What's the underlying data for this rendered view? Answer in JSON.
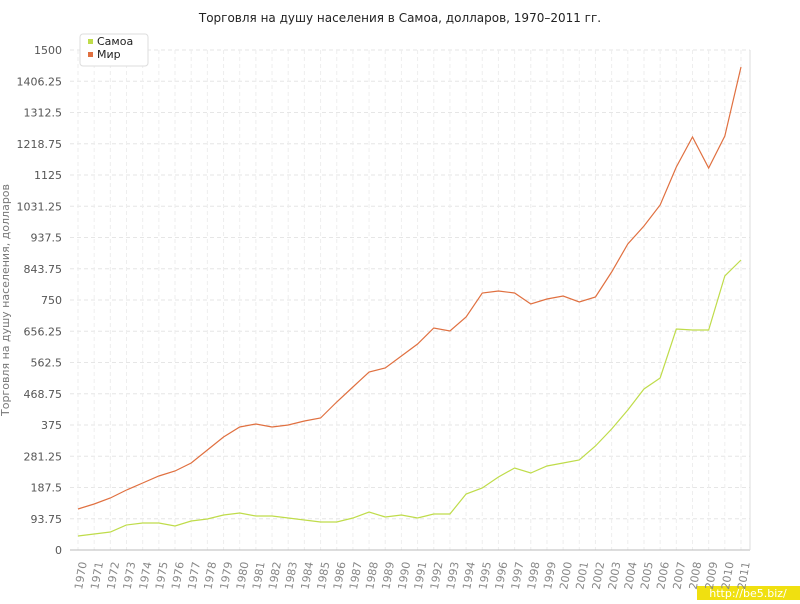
{
  "chart_data": {
    "type": "line",
    "title": "Торговля на душу населения в Самоа, долларов, 1970–2011 гг.",
    "y_label": "Торговля на душу населения, долларов",
    "categories": [
      "1970",
      "1971",
      "1972",
      "1973",
      "1974",
      "1975",
      "1976",
      "1977",
      "1978",
      "1979",
      "1980",
      "1981",
      "1982",
      "1983",
      "1984",
      "1985",
      "1986",
      "1987",
      "1988",
      "1989",
      "1990",
      "1991",
      "1992",
      "1993",
      "1994",
      "1995",
      "1996",
      "1997",
      "1998",
      "1999",
      "2000",
      "2001",
      "2002",
      "2003",
      "2004",
      "2005",
      "2006",
      "2007",
      "2008",
      "2009",
      "2010",
      "2011"
    ],
    "series": [
      {
        "name": "Самоа",
        "color": "#bfdc4a",
        "values": [
          42,
          48,
          54,
          75,
          81,
          81,
          72,
          87,
          93,
          105,
          111,
          102,
          102,
          96,
          90,
          84,
          84,
          96,
          114,
          99,
          105,
          96,
          108,
          108,
          168,
          186,
          219,
          246,
          231,
          252,
          261,
          270,
          312,
          363,
          420,
          483,
          516,
          663,
          660,
          660,
          822,
          870
        ]
      },
      {
        "name": "Мир",
        "color": "#e07040",
        "values": [
          123,
          138,
          156,
          180,
          201,
          222,
          237,
          261,
          300,
          339,
          369,
          378,
          369,
          375,
          387,
          396,
          444,
          489,
          534,
          546,
          582,
          618,
          666,
          657,
          699,
          771,
          777,
          771,
          738,
          753,
          762,
          744,
          759,
          834,
          918,
          972,
          1035,
          1149,
          1239,
          1146,
          1242,
          1449
        ]
      }
    ],
    "ylim": [
      0,
      1500
    ],
    "yticks": [
      0,
      93.75,
      187.5,
      281.25,
      375,
      468.75,
      562.5,
      656.25,
      750,
      843.75,
      937.5,
      1031.25,
      1125,
      1218.75,
      1312.5,
      1406.25,
      1500
    ],
    "grid": true,
    "legend": "top-left",
    "watermark": "http://be5.biz/"
  }
}
